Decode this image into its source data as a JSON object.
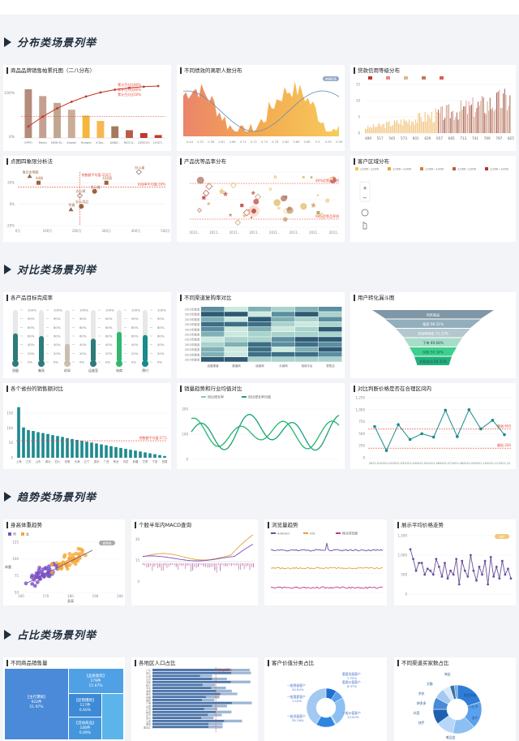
{
  "sections": [
    {
      "title": "分布类场景列举"
    },
    {
      "title": "对比类场景列举"
    },
    {
      "title": "趋势类场景列举"
    },
    {
      "title": "占比类场景列举"
    }
  ],
  "colors": {
    "heading": "#1f2d3d",
    "brown": "#b08d7a",
    "gold": "#f3b23b",
    "red": "#c0392b",
    "teal": "#1a8a8a",
    "green": "#2fb86e",
    "blue": "#2e7dd7"
  },
  "cards": {
    "pareto": {
      "title": "商品品牌销售帕累托图（二八分布）"
    },
    "resign": {
      "title": "不同绩效的离职人数分布",
      "badge": "数据标签"
    },
    "credit": {
      "title": "贷款信用等级分布"
    },
    "quadrant": {
      "title": "点图四象限分析法",
      "mean_x_label": "销售额平均值:210万",
      "mean_y_label": "利润率平均值:16%"
    },
    "product": {
      "title": "产品优等品率分布",
      "line_top_label": "80%优等品率线",
      "line_bottom_label": "60%优等品率线"
    },
    "region": {
      "title": "客户区域分布",
      "legend": [
        "1,000~1,000",
        "1,000~1,000",
        "1,000~1,000",
        "1,000~1,000",
        "1,000~1,000"
      ],
      "zoom_in": "+",
      "zoom_out": "−"
    },
    "target": {
      "title": "各产品目标完成率"
    },
    "heatmap": {
      "title": "不同渠道复购率对比"
    },
    "funnel": {
      "title": "用户转化漏斗图"
    },
    "provinces": {
      "title": "各个省份的销售额对比",
      "mean_label": "销售额平均值:57万"
    },
    "trend": {
      "title": "销量趋势和行业均值对比",
      "legend": [
        "同比增长率",
        "同比增长率均值"
      ]
    },
    "price": {
      "title": "对比判断价格是否在合理区间内",
      "upper_label": "最高:600",
      "lower_label": "最低:200"
    },
    "bodyweight": {
      "title": "身高体重趋势",
      "legend": [
        "男",
        "女"
      ],
      "xlabel": "身高",
      "ylabel": "体重",
      "badge": "趋势线"
    },
    "macd": {
      "title": "个股半年内MACD查询"
    },
    "browser": {
      "title": "浏览量趋势",
      "legend": [
        "Android",
        "iOS",
        "移动浏览器"
      ]
    },
    "avgprice": {
      "title": "展示平均价格走势",
      "badge": "均价"
    },
    "treemap": {
      "title": "不同商品销售量"
    },
    "population": {
      "title": "各地区人口占比"
    },
    "customer": {
      "title": "客户价值分类占比"
    },
    "channel": {
      "title": "不同渠道买家数占比"
    }
  },
  "chart_data": [
    {
      "type": "bar",
      "title": "商品品牌销售帕累托图（二八分布）",
      "categories": [
        "OPPO",
        "Meizu",
        "NEW Bl..",
        "Xiaomi",
        "Huawei",
        "K-Tou..",
        "ANBZ..",
        "RICE-S..",
        "LENOVO",
        "LOGIT.."
      ],
      "values": [
        100,
        86,
        72,
        58,
        46,
        35,
        24,
        16,
        10,
        6
      ],
      "annotations": [
        "累计百分比80%",
        "累计百分比80%",
        "累计百分比50%"
      ]
    },
    {
      "type": "area",
      "title": "不同绩效的离职人数分布",
      "categories": [
        "0.44",
        "0.52",
        "0.58",
        "0.61",
        "0.68",
        "0.71",
        "0.72",
        "0.74",
        "0.78",
        "0.82",
        "0.86",
        "0.88",
        "0.9",
        "0.94",
        "0.96"
      ]
    },
    {
      "type": "bar",
      "title": "贷款信用等级分布",
      "x": [
        "489",
        "517",
        "545",
        "573",
        "601",
        "629",
        "657",
        "685",
        "713",
        "741",
        "769",
        "797",
        "825"
      ],
      "yticks": [
        "0",
        "5",
        "10",
        "15"
      ]
    },
    {
      "type": "scatter",
      "title": "点图四象限分析法",
      "xticks": [
        "0万",
        "100万",
        "200万",
        "300万",
        "400万",
        "500万"
      ],
      "yticks": [
        "-20%",
        "0%",
        "20%"
      ],
      "points": [
        {
          "label": "笔记本电脑",
          "x": 40,
          "y": 26
        },
        {
          "label": "A4纸",
          "x": 70,
          "y": 20
        },
        {
          "label": "办公椅",
          "x": 210,
          "y": 8
        },
        {
          "label": "显示器",
          "x": 260,
          "y": 12
        },
        {
          "label": "传真",
          "x": 180,
          "y": -5
        },
        {
          "label": "打印机",
          "x": 300,
          "y": 20
        },
        {
          "label": "办公桌",
          "x": 410,
          "y": 30
        },
        {
          "label": "办公用品",
          "x": 215,
          "y": -2
        }
      ]
    },
    {
      "type": "scatter",
      "title": "产品优等品率分布",
      "xticks": [
        "2011..",
        "2011..",
        "2011..",
        "2011..",
        "2011..",
        "2011..",
        "2011..",
        "2011.."
      ],
      "yticks": [
        "100%",
        "80%",
        "60%"
      ]
    },
    {
      "type": "bar",
      "title": "各产品目标完成率",
      "categories": [
        "测量",
        "集采",
        "综采",
        "运维室",
        "电商",
        "预付"
      ],
      "values": [
        55,
        50,
        35,
        45,
        58,
        52
      ],
      "yticks": [
        "0%",
        "20%",
        "40%",
        "60%",
        "80%",
        "90%",
        "100%"
      ]
    },
    {
      "type": "heatmap",
      "title": "不同渠道复购率对比",
      "rows": [
        "2015年渠道",
        "2015年渠道",
        "2015年渠道",
        "2015年渠道",
        "2015年渠道",
        "2015年渠道",
        "2015年渠道",
        "2015年渠道",
        "2015年渠道",
        "2015年渠道",
        "2015年渠道"
      ],
      "cols": [
        "自营渠道",
        "渠道商",
        "经销商",
        "分销商",
        "电商平台",
        "零售店"
      ]
    },
    {
      "type": "bar",
      "title": "用户转化漏斗图",
      "categories": [
        "浏览商品",
        "搜索",
        "添加购物车",
        "下单",
        "付款",
        "交易成功"
      ],
      "values": [
        100,
        99.31,
        51.22,
        89.68,
        50.34,
        88.32
      ],
      "labels": [
        "浏览商品",
        "搜索  99.31%",
        "添加购物车  51.22%",
        "下单  89.68%",
        "付款  50.34%",
        "交易成功  88.32%"
      ]
    },
    {
      "type": "bar",
      "title": "各个省份的销售额对比",
      "categories": [
        "上海",
        "广东",
        "江苏",
        "浙江",
        "山东",
        "北京",
        "湖北",
        "河南",
        "四川",
        "福建",
        "安徽",
        "湖南",
        "天津",
        "河北",
        "辽宁",
        "陕西",
        "重庆",
        "江西",
        "广西",
        "吉林",
        "黑龙",
        "云南",
        "内蒙",
        "山西",
        "新疆",
        "贵州",
        "甘肃",
        "海南",
        "宁夏",
        "青海",
        "西藏"
      ],
      "values": [
        170,
        102,
        93,
        90,
        86,
        83,
        80,
        76,
        73,
        70,
        66,
        63,
        60,
        57,
        54,
        51,
        48,
        45,
        42,
        39,
        36,
        33,
        30,
        27,
        24,
        21,
        18,
        15,
        12,
        9,
        6
      ]
    },
    {
      "type": "line",
      "title": "销量趋势和行业均值对比",
      "yticks": [
        "0",
        "100",
        "200"
      ],
      "series": [
        {
          "name": "同比增长率"
        },
        {
          "name": "同比增长率均值"
        }
      ]
    },
    {
      "type": "line",
      "title": "对比判断价格是否在合理区间内",
      "x": [
        "2021-01",
        "2021-02",
        "2021-03",
        "2021-04",
        "2021-05",
        "2021-06",
        "2021-07",
        "2021-08",
        "2021-09",
        "2021-10",
        "2021-11",
        "2021-12"
      ],
      "values": [
        650,
        150,
        690,
        380,
        500,
        430,
        990,
        440,
        1000,
        600,
        780,
        480
      ],
      "yticks": [
        "0",
        "250",
        "500",
        "750",
        "1,000",
        "1,250"
      ]
    },
    {
      "type": "scatter",
      "title": "身高体重趋势",
      "xticks": [
        "160",
        "170",
        "180",
        "190",
        "200"
      ],
      "yticks": [
        "50",
        "75",
        "100",
        "125"
      ],
      "xlabel": "身高",
      "ylabel": "体重",
      "series": [
        {
          "name": "男"
        },
        {
          "name": "女"
        }
      ]
    },
    {
      "type": "bar",
      "title": "个股半年内MACD查询"
    },
    {
      "type": "line",
      "title": "浏览量趋势",
      "series": [
        {
          "name": "Android"
        },
        {
          "name": "iOS"
        },
        {
          "name": "移动浏览器"
        }
      ]
    },
    {
      "type": "line",
      "title": "展示平均价格走势",
      "yticks": [
        "0",
        "500",
        "1,000",
        "1,500"
      ],
      "values": [
        1150,
        900,
        600,
        800,
        800,
        500,
        650,
        600,
        500,
        900,
        700,
        450,
        800,
        400,
        600,
        500,
        900,
        250,
        850,
        600,
        450,
        1000,
        600,
        350,
        700,
        500,
        850,
        250,
        950,
        450,
        700,
        400,
        850,
        500,
        650,
        400
      ]
    },
    {
      "type": "heatmap",
      "title": "不同商品销售量",
      "labels": [
        {
          "name": "【主打爆款】",
          "value": "922件",
          "pct": "51.97%"
        },
        {
          "name": "【品质套装】",
          "value": "279件",
          "pct": "15.67%"
        },
        {
          "name": "【促销爆款】",
          "value": "117件",
          "pct": "6.60%"
        },
        {
          "name": "【活动商品】",
          "value": "108件",
          "pct": "6.09%"
        }
      ]
    },
    {
      "type": "bar",
      "title": "各地区人口占比",
      "categories": [
        "广东",
        "浙江",
        "江苏",
        "山东",
        "河南",
        "四川",
        "河北",
        "湖南",
        "湖北",
        "安徽",
        "福建",
        "广西",
        "云南",
        "江西",
        "陕西",
        "辽宁",
        "贵州",
        "山西",
        "重庆",
        "黑龙江"
      ],
      "annotations": [
        "平均:52%"
      ]
    },
    {
      "type": "pie",
      "title": "客户价值分类占比",
      "labels": [
        "重要发展客户",
        "重要价值客户",
        "一般挽留客户",
        "一般重要客户",
        "一般价值客户",
        "一般发展客户"
      ],
      "values": [
        7.72,
        6.37,
        20.92,
        1.15,
        13.92,
        35.76
      ]
    },
    {
      "type": "pie",
      "title": "不同渠道买家数占比",
      "labels": [
        "淘宝",
        "天猫",
        "京东",
        "拼多多",
        "抖音",
        "快手",
        "微信商城",
        "小红书",
        "苏宁",
        "唯品会"
      ],
      "values": [
        20,
        18,
        15,
        12,
        10,
        8,
        7,
        5,
        3,
        2
      ]
    }
  ]
}
